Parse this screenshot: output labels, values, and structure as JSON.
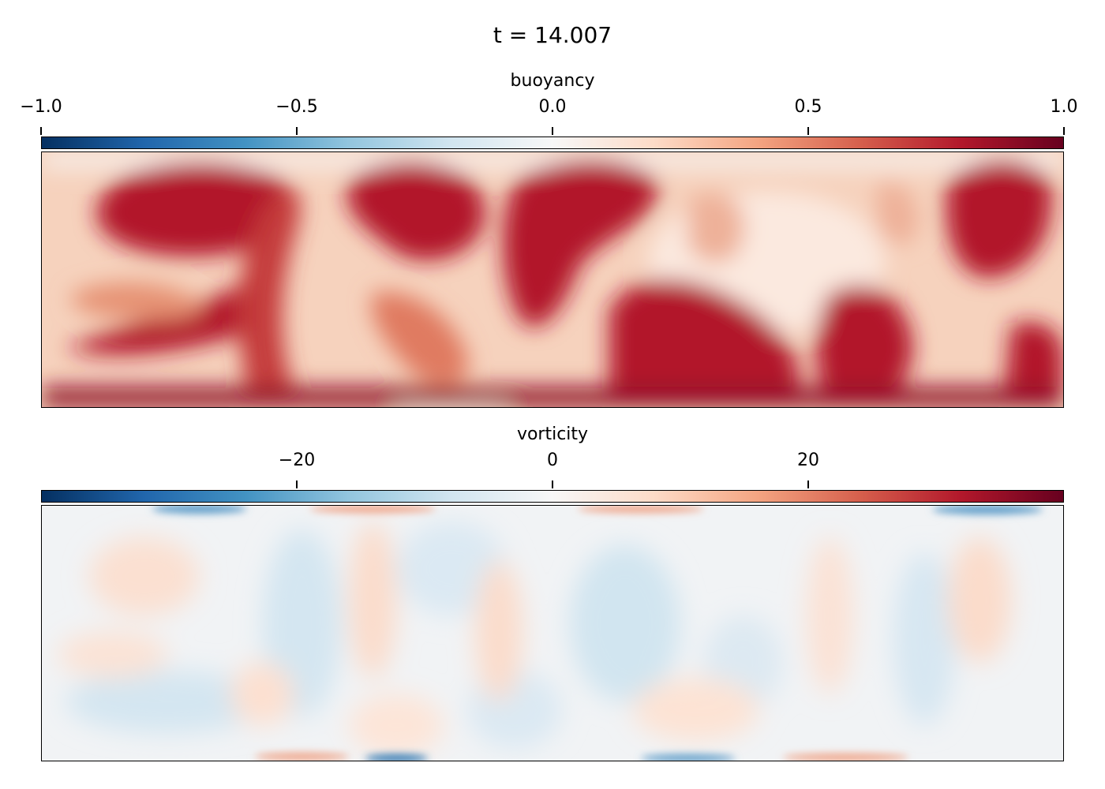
{
  "figure": {
    "title": "t = 14.007"
  },
  "chart_data": [
    {
      "type": "heatmap",
      "name": "buoyancy",
      "colorbar_label": "buoyancy",
      "vlim": [
        -1.0,
        1.0
      ],
      "ticks": [
        -1.0,
        -0.5,
        0.0,
        0.5,
        1.0
      ],
      "tick_labels": [
        "−1.0",
        "−0.5",
        "0.0",
        "0.5",
        "1.0"
      ],
      "colormap": [
        "#053061",
        "#2166ac",
        "#4393c3",
        "#92c5de",
        "#d1e5f0",
        "#f7f7f7",
        "#fddbc7",
        "#f4a582",
        "#d6604d",
        "#b2182b",
        "#67001f"
      ]
    },
    {
      "type": "heatmap",
      "name": "vorticity",
      "colorbar_label": "vorticity",
      "vlim": [
        -40,
        40
      ],
      "ticks": [
        -20,
        0,
        20
      ],
      "tick_labels": [
        "−20",
        "0",
        "20"
      ],
      "colormap": [
        "#053061",
        "#2166ac",
        "#4393c3",
        "#92c5de",
        "#d1e5f0",
        "#f7f7f7",
        "#fddbc7",
        "#f4a582",
        "#d6604d",
        "#b2182b",
        "#67001f"
      ]
    }
  ]
}
